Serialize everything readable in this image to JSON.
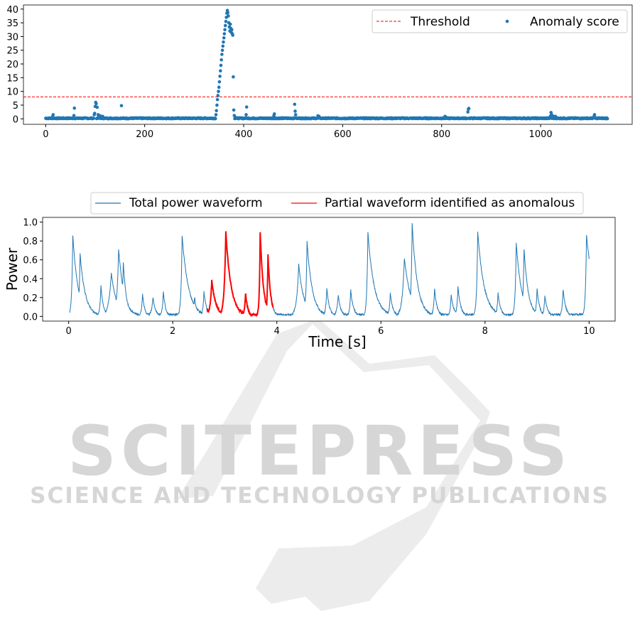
{
  "chart_data": [
    {
      "type": "scatter",
      "xlim": [
        -45,
        1185
      ],
      "ylim": [
        -2,
        41.5
      ],
      "xticks": [
        0,
        200,
        400,
        600,
        800,
        1000
      ],
      "yticks": [
        0,
        5,
        10,
        15,
        20,
        25,
        30,
        35,
        40
      ],
      "grid": false,
      "legend_position": "top-right",
      "threshold": {
        "label": "Threshold",
        "value": 8,
        "color": "#ff0000"
      },
      "score_series": {
        "label": "Anomaly score",
        "color": "#1f77b4",
        "x_range": [
          0,
          1135
        ],
        "baseline": 0.2,
        "points": [
          [
            14,
            0.8
          ],
          [
            15,
            1.5
          ],
          [
            57,
            1.2
          ],
          [
            58,
            3.9
          ],
          [
            98,
            1.5
          ],
          [
            99,
            2.0
          ],
          [
            100,
            4.5
          ],
          [
            101,
            6.0
          ],
          [
            102,
            5.5
          ],
          [
            104,
            4.2
          ],
          [
            106,
            1.5
          ],
          [
            110,
            1.1
          ],
          [
            115,
            0.9
          ],
          [
            153,
            4.8
          ],
          [
            344,
            1.5
          ],
          [
            345,
            3.0
          ],
          [
            346,
            5.0
          ],
          [
            347,
            7.0
          ],
          [
            348,
            8.5
          ],
          [
            349,
            10.0
          ],
          [
            350,
            11.5
          ],
          [
            351,
            13.5
          ],
          [
            352,
            15.5
          ],
          [
            353,
            17.5
          ],
          [
            354,
            19.5
          ],
          [
            355,
            21.5
          ],
          [
            356,
            23.5
          ],
          [
            357,
            25.0
          ],
          [
            358,
            26.5
          ],
          [
            359,
            28.0
          ],
          [
            360,
            29.5
          ],
          [
            361,
            31.0
          ],
          [
            362,
            32.5
          ],
          [
            363,
            34.0
          ],
          [
            364,
            35.5
          ],
          [
            365,
            37.0
          ],
          [
            366,
            38.5
          ],
          [
            367,
            39.5
          ],
          [
            368,
            38.7
          ],
          [
            369,
            37.5
          ],
          [
            370,
            35.0
          ],
          [
            371,
            33.5
          ],
          [
            372,
            32.0
          ],
          [
            373,
            34.5
          ],
          [
            374,
            33.0
          ],
          [
            375,
            31.5
          ],
          [
            376,
            32.5
          ],
          [
            377,
            31.0
          ],
          [
            378,
            30.5
          ],
          [
            379,
            15.3
          ],
          [
            380,
            3.2
          ],
          [
            381,
            1.2
          ],
          [
            383,
            0.6
          ],
          [
            405,
            1.5
          ],
          [
            406,
            4.3
          ],
          [
            461,
            1.1
          ],
          [
            462,
            1.8
          ],
          [
            503,
            5.3
          ],
          [
            504,
            2.8
          ],
          [
            505,
            1.5
          ],
          [
            550,
            1.1
          ],
          [
            552,
            0.9
          ],
          [
            807,
            0.9
          ],
          [
            853,
            2.5
          ],
          [
            854,
            3.5
          ],
          [
            855,
            3.8
          ],
          [
            1020,
            1.0
          ],
          [
            1021,
            2.3
          ],
          [
            1022,
            1.6
          ],
          [
            1025,
            1.0
          ],
          [
            1030,
            0.9
          ],
          [
            1108,
            1.0
          ],
          [
            1109,
            1.5
          ]
        ]
      }
    },
    {
      "type": "line",
      "xlabel": "Time [s]",
      "ylabel": "Power",
      "xlim": [
        -0.5,
        10.5
      ],
      "ylim": [
        -0.05,
        1.05
      ],
      "xticks": [
        0,
        2,
        4,
        6,
        8,
        10
      ],
      "yticks": [
        0.0,
        0.2,
        0.4,
        0.6,
        0.8,
        1.0
      ],
      "grid": false,
      "legend_position": "top-center",
      "series": [
        {
          "name": "Total power waveform",
          "color": "#1f77b4",
          "x_range": [
            0.02,
            10.0
          ],
          "floor": 0.02,
          "peaks": [
            [
              0.08,
              0.86,
              0.02,
              0.1
            ],
            [
              0.22,
              0.66,
              0.02,
              0.1
            ],
            [
              0.62,
              0.32,
              0.02,
              0.05
            ],
            [
              0.82,
              0.46,
              0.05,
              0.1
            ],
            [
              0.96,
              0.72,
              0.03,
              0.1
            ],
            [
              1.05,
              0.58,
              0.02,
              0.06
            ],
            [
              1.42,
              0.24,
              0.02,
              0.04
            ],
            [
              1.62,
              0.2,
              0.03,
              0.05
            ],
            [
              1.82,
              0.27,
              0.02,
              0.04
            ],
            [
              2.18,
              0.86,
              0.02,
              0.12
            ],
            [
              2.42,
              0.21,
              0.02,
              0.04
            ],
            [
              2.6,
              0.26,
              0.02,
              0.05
            ],
            [
              2.75,
              0.38,
              0.03,
              0.08
            ],
            [
              3.02,
              0.9,
              0.03,
              0.1
            ],
            [
              3.4,
              0.25,
              0.02,
              0.04
            ],
            [
              3.68,
              0.9,
              0.015,
              0.06
            ],
            [
              3.83,
              0.66,
              0.015,
              0.05
            ],
            [
              4.42,
              0.55,
              0.04,
              0.1
            ],
            [
              4.58,
              0.8,
              0.02,
              0.1
            ],
            [
              4.96,
              0.3,
              0.02,
              0.05
            ],
            [
              5.18,
              0.22,
              0.03,
              0.05
            ],
            [
              5.42,
              0.28,
              0.02,
              0.05
            ],
            [
              5.75,
              0.89,
              0.02,
              0.12
            ],
            [
              6.18,
              0.25,
              0.02,
              0.05
            ],
            [
              6.45,
              0.62,
              0.04,
              0.12
            ],
            [
              6.6,
              0.98,
              0.02,
              0.1
            ],
            [
              7.03,
              0.29,
              0.02,
              0.05
            ],
            [
              7.35,
              0.23,
              0.02,
              0.05
            ],
            [
              7.48,
              0.32,
              0.02,
              0.05
            ],
            [
              7.86,
              0.9,
              0.02,
              0.12
            ],
            [
              8.25,
              0.25,
              0.02,
              0.05
            ],
            [
              8.6,
              0.78,
              0.02,
              0.1
            ],
            [
              8.75,
              0.72,
              0.02,
              0.08
            ],
            [
              9.0,
              0.29,
              0.02,
              0.05
            ],
            [
              9.15,
              0.22,
              0.02,
              0.05
            ],
            [
              9.5,
              0.29,
              0.02,
              0.05
            ],
            [
              9.95,
              0.86,
              0.02,
              0.15
            ]
          ]
        },
        {
          "name": "Partial waveform identified as anomalous",
          "color": "#ff0000",
          "x_range": [
            2.65,
            3.93
          ]
        }
      ]
    }
  ],
  "watermark": {
    "title": "SCITEPRESS",
    "subtitle": "SCIENCE AND TECHNOLOGY PUBLICATIONS"
  }
}
